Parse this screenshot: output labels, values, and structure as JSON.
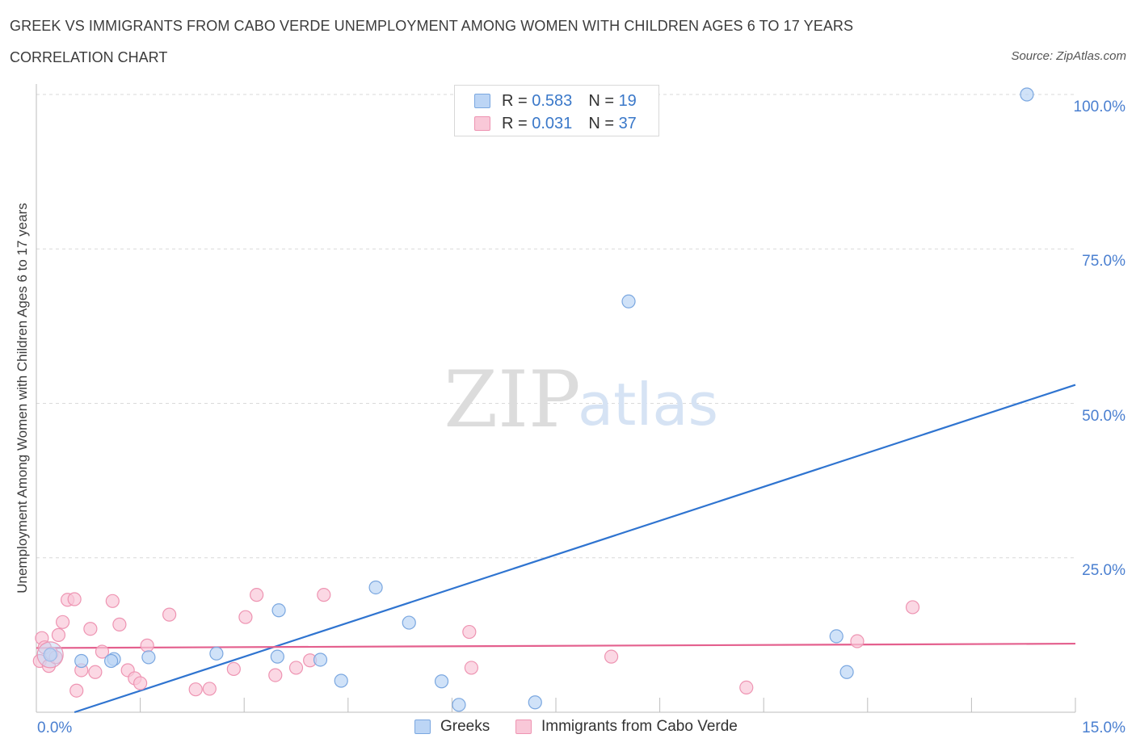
{
  "header": {
    "title": "GREEK VS IMMIGRANTS FROM CABO VERDE UNEMPLOYMENT AMONG WOMEN WITH CHILDREN AGES 6 TO 17 YEARS",
    "subtitle": "CORRELATION CHART",
    "source": "Source: ZipAtlas.com"
  },
  "watermark": {
    "zip": "ZIP",
    "atlas": "atlas"
  },
  "legend": {
    "r_label": "R =",
    "n_label": "N =",
    "rows": [
      {
        "r": "0.583",
        "n": "19"
      },
      {
        "r": "0.031",
        "n": "37"
      }
    ]
  },
  "chart_data": {
    "type": "scatter",
    "ylabel": "Unemployment Among Women with Children Ages 6 to 17 years",
    "xlim": [
      0,
      15
    ],
    "ylim": [
      0,
      100
    ],
    "x_tick_labels": [
      "0.0%",
      "15.0%"
    ],
    "y_tick_labels": [
      "100.0%",
      "75.0%",
      "50.0%",
      "25.0%"
    ],
    "y_tick_values": [
      100,
      75,
      50,
      25
    ],
    "grid": true,
    "legend_position": "bottom",
    "colors": {
      "greeks_fill": "#bcd5f5",
      "greeks_stroke": "#7aa7e0",
      "greeks_line": "#2f74d0",
      "cabo_fill": "#f9c8d8",
      "cabo_stroke": "#ee94b2",
      "cabo_line": "#e4608e"
    },
    "series": [
      {
        "name": "Greeks",
        "points": [
          [
            0.2,
            9.3
          ],
          [
            0.65,
            8.3
          ],
          [
            1.12,
            8.6
          ],
          [
            1.62,
            8.9
          ],
          [
            2.6,
            9.5
          ],
          [
            3.48,
            9.0
          ],
          [
            3.5,
            16.5
          ],
          [
            4.1,
            8.5
          ],
          [
            4.4,
            5.1
          ],
          [
            4.9,
            20.2
          ],
          [
            5.38,
            14.5
          ],
          [
            5.85,
            5.0
          ],
          [
            6.1,
            1.2
          ],
          [
            7.2,
            1.6
          ],
          [
            8.55,
            66.5
          ],
          [
            11.55,
            12.3
          ],
          [
            11.7,
            6.5
          ],
          [
            14.3,
            100.0
          ],
          [
            1.08,
            8.3
          ]
        ],
        "trend": {
          "x": [
            0.55,
            15.0
          ],
          "y": [
            0.0,
            53.0
          ]
        }
      },
      {
        "name": "Immigrants from Cabo Verde",
        "points": [
          [
            0.05,
            8.3
          ],
          [
            0.08,
            12.0
          ],
          [
            0.12,
            10.5
          ],
          [
            0.18,
            7.5
          ],
          [
            0.22,
            9.5
          ],
          [
            0.28,
            8.9
          ],
          [
            0.32,
            12.5
          ],
          [
            0.38,
            14.6
          ],
          [
            0.45,
            18.2
          ],
          [
            0.55,
            18.3
          ],
          [
            0.58,
            3.5
          ],
          [
            0.65,
            6.8
          ],
          [
            0.78,
            13.5
          ],
          [
            0.85,
            6.5
          ],
          [
            0.95,
            9.8
          ],
          [
            1.1,
            18.0
          ],
          [
            1.2,
            14.2
          ],
          [
            1.32,
            6.8
          ],
          [
            1.42,
            5.5
          ],
          [
            1.5,
            4.7
          ],
          [
            1.6,
            10.8
          ],
          [
            1.92,
            15.8
          ],
          [
            2.3,
            3.7
          ],
          [
            2.5,
            3.8
          ],
          [
            2.85,
            7.0
          ],
          [
            3.02,
            15.4
          ],
          [
            3.18,
            19.0
          ],
          [
            3.45,
            6.0
          ],
          [
            3.75,
            7.2
          ],
          [
            3.95,
            8.4
          ],
          [
            4.15,
            19.0
          ],
          [
            6.25,
            13.0
          ],
          [
            6.28,
            7.2
          ],
          [
            8.3,
            9.0
          ],
          [
            10.25,
            4.0
          ],
          [
            11.85,
            11.5
          ],
          [
            12.65,
            17.0
          ]
        ],
        "trend": {
          "x": [
            0.0,
            15.0
          ],
          "y": [
            10.4,
            11.1
          ]
        }
      }
    ]
  }
}
